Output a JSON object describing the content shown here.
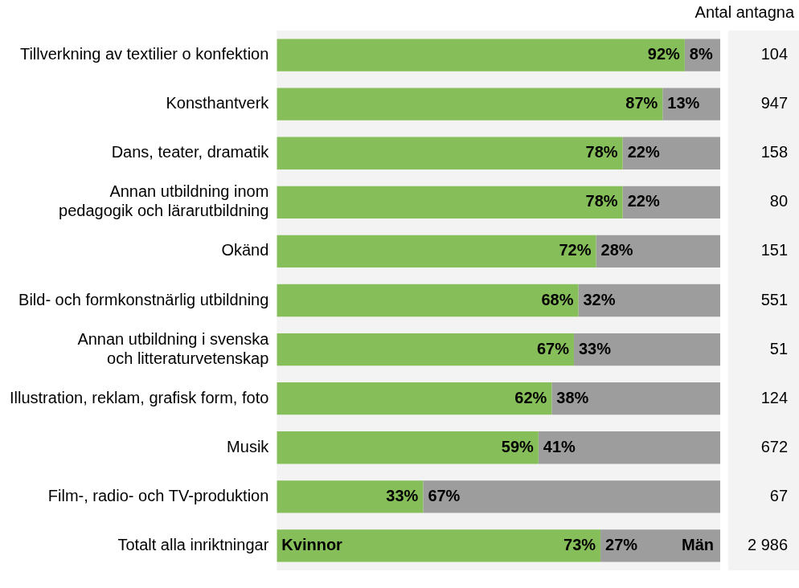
{
  "chart_data": {
    "type": "bar",
    "orientation": "horizontal",
    "stacked": true,
    "data_labels": true,
    "grid": false,
    "tick_labels": "y",
    "categories": [
      "Tillverkning av textilier o konfektion",
      "Konsthantverk",
      "Dans, teater, dramatik",
      "Annan utbildning inom\npedagogik och lärarutbildning",
      "Okänd",
      "Bild- och formkonstnärlig utbildning",
      "Annan utbildning i svenska\noch litteraturvetenskap",
      "Illustration, reklam, grafisk form, foto",
      "Musik",
      "Film-, radio- och TV-produktion",
      "Totalt alla inriktningar"
    ],
    "series": [
      {
        "name": "Kvinnor",
        "color": "#86bf5a",
        "values": [
          92,
          87,
          78,
          78,
          72,
          68,
          67,
          62,
          59,
          33,
          73
        ],
        "value_labels": [
          "92%",
          "87%",
          "78%",
          "78%",
          "72%",
          "68%",
          "67%",
          "62%",
          "59%",
          "33%",
          "73%"
        ]
      },
      {
        "name": "Män",
        "color": "#9d9d9d",
        "values": [
          8,
          13,
          22,
          22,
          28,
          32,
          33,
          38,
          41,
          67,
          27
        ],
        "value_labels": [
          "8%",
          "13%",
          "22%",
          "22%",
          "28%",
          "32%",
          "33%",
          "38%",
          "41%",
          "67%",
          "27%"
        ]
      }
    ],
    "xlim": [
      0,
      100
    ],
    "counts_title": "Antal antagna",
    "counts": [
      104,
      947,
      158,
      80,
      151,
      551,
      51,
      124,
      672,
      67,
      2986
    ],
    "count_labels": [
      "104",
      "947",
      "158",
      "80",
      "151",
      "551",
      "51",
      "124",
      "672",
      "67",
      "2 986"
    ]
  }
}
